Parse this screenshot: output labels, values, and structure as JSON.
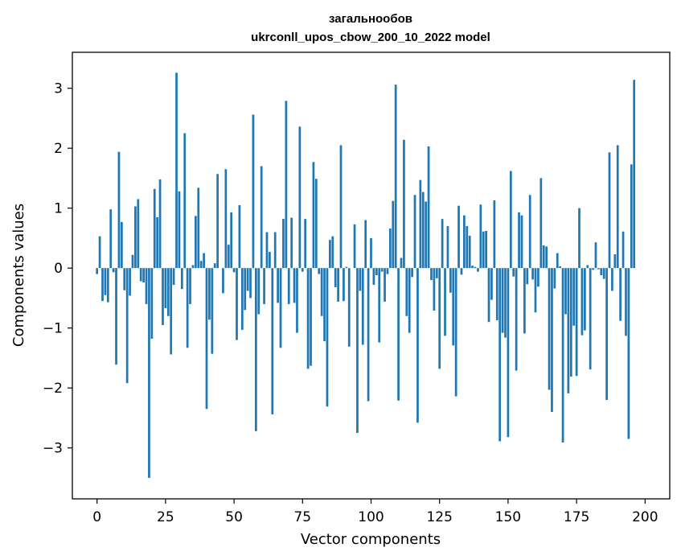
{
  "chart_data": {
    "type": "bar",
    "title_line1": "загальнообов",
    "title_line2": "ukrconll_upos_cbow_200_10_2022 model",
    "xlabel": "Vector components",
    "ylabel": "Components values",
    "xlim": [
      -9,
      209
    ],
    "ylim": [
      -3.85,
      3.6
    ],
    "xticks": [
      0,
      25,
      50,
      75,
      100,
      125,
      150,
      175,
      200
    ],
    "yticks": [
      -3,
      -2,
      -1,
      0,
      1,
      2,
      3
    ],
    "xtick_labels": [
      "0",
      "25",
      "50",
      "75",
      "100",
      "125",
      "150",
      "175",
      "200"
    ],
    "ytick_labels": [
      "−3",
      "−2",
      "−1",
      "0",
      "1",
      "2",
      "3"
    ],
    "bar_color": "#1f77b4",
    "values": [
      -0.1,
      0.53,
      -0.55,
      -0.45,
      -0.57,
      0.98,
      -0.07,
      -1.61,
      1.94,
      0.77,
      -0.37,
      -1.92,
      -0.46,
      0.22,
      1.03,
      1.15,
      -0.22,
      -0.24,
      -0.6,
      -3.5,
      -1.18,
      1.32,
      0.85,
      1.48,
      -0.95,
      -0.67,
      -0.8,
      -1.44,
      -0.28,
      3.26,
      1.28,
      -0.35,
      2.25,
      -1.33,
      -0.6,
      0.05,
      0.87,
      1.34,
      0.12,
      0.25,
      -2.35,
      -0.86,
      -1.43,
      0.08,
      1.57,
      0.0,
      -0.42,
      1.65,
      0.39,
      0.93,
      -0.07,
      -1.2,
      1.05,
      -1.03,
      -0.7,
      -0.38,
      -0.5,
      2.56,
      -2.72,
      -0.77,
      1.7,
      -0.6,
      0.6,
      0.27,
      -2.44,
      0.6,
      -0.58,
      -1.33,
      0.82,
      2.79,
      -0.6,
      0.84,
      -0.58,
      -1.08,
      2.36,
      -0.06,
      0.82,
      -1.68,
      -1.63,
      1.77,
      1.49,
      -0.1,
      -0.8,
      -1.22,
      -2.31,
      0.47,
      0.53,
      -0.32,
      -0.56,
      2.05,
      -0.55,
      0.02,
      -1.31,
      0.0,
      0.73,
      -2.75,
      -0.38,
      -1.28,
      0.8,
      -2.22,
      0.5,
      -0.28,
      -0.12,
      -1.24,
      -0.06,
      -0.56,
      -0.1,
      0.66,
      1.12,
      3.06,
      -2.21,
      0.17,
      2.14,
      -0.8,
      -1.08,
      -0.15,
      1.22,
      -2.58,
      1.47,
      1.27,
      1.11,
      2.03,
      -0.2,
      -0.71,
      -0.17,
      -1.68,
      0.82,
      -1.13,
      0.7,
      -0.41,
      -1.29,
      -2.14,
      1.04,
      -0.11,
      0.88,
      0.7,
      0.54,
      0.04,
      0.02,
      -0.06,
      1.06,
      0.61,
      0.62,
      -0.9,
      -0.53,
      1.13,
      -0.87,
      -2.89,
      -1.08,
      -1.16,
      -2.82,
      1.62,
      -0.14,
      -1.71,
      0.93,
      0.88,
      -1.09,
      -0.27,
      1.22,
      -0.19,
      -0.74,
      -0.31,
      1.5,
      0.38,
      0.36,
      -2.03,
      -2.4,
      -0.34,
      0.25,
      0.03,
      -2.91,
      -0.77,
      -2.09,
      -1.81,
      -0.96,
      -1.8,
      1.0,
      -1.12,
      -1.04,
      0.05,
      -1.69,
      -0.03,
      0.43,
      -0.02,
      -0.12,
      -0.18,
      -2.2,
      1.93,
      -0.38,
      0.23,
      2.05,
      -0.88,
      0.61,
      -1.13,
      -2.85,
      1.73,
      3.14
    ]
  }
}
